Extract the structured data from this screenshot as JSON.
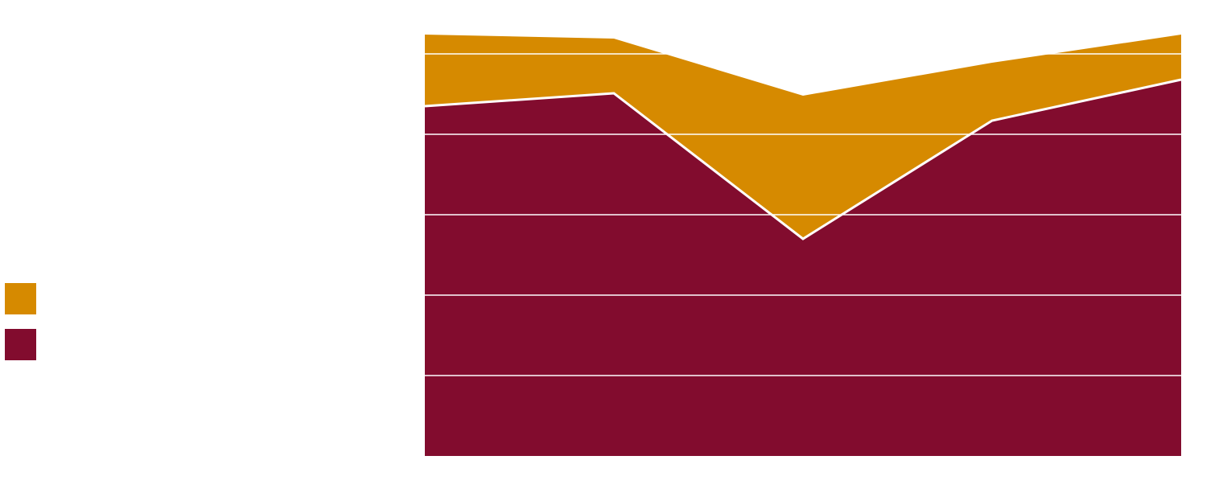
{
  "chart_data": {
    "type": "stacked-area",
    "categories": [
      null,
      null,
      null,
      null,
      null
    ],
    "series": [
      {
        "color": "#820c2e",
        "values": [
          4.35,
          4.51,
          2.7,
          4.17,
          4.68
        ]
      },
      {
        "color": "#d68a00",
        "values": [
          0.89,
          0.68,
          1.78,
          0.72,
          0.56
        ]
      }
    ],
    "ylim": [
      0,
      5.24
    ],
    "yticks": [
      1,
      2,
      3,
      4,
      5
    ],
    "grid": true
  }
}
